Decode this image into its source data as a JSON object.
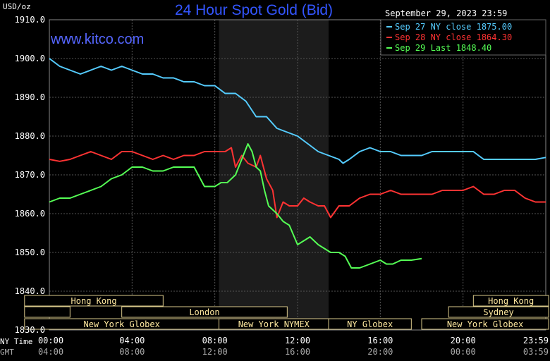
{
  "chart_data": {
    "type": "line",
    "title": "24 Hour Spot Gold (Bid)",
    "website": "www.kitco.com",
    "currency_label": "USD/oz",
    "timestamp": "September 29, 2023 23:59",
    "x_axis_ny_label": "NY Time",
    "x_axis_gmt_label": "GMT",
    "x_ticks_ny": [
      "00:00",
      "04:00",
      "08:00",
      "12:00",
      "16:00",
      "20:00",
      "23:59"
    ],
    "x_ticks_gmt": [
      "04:00",
      "08:00",
      "12:00",
      "16:00",
      "20:00",
      "00:00",
      "03:59"
    ],
    "y_tick_labels": [
      "1910.0",
      "1900.0",
      "1890.0",
      "1880.0",
      "1870.0",
      "1860.0",
      "1850.0",
      "1840.0",
      "1830.0"
    ],
    "ylim": [
      1830,
      1910
    ],
    "xlim_hours": [
      0,
      24
    ],
    "grid": true,
    "legend_position": "top-right",
    "colors": {
      "background": "#000000",
      "grid": "#555555",
      "title": "#3355ff",
      "website": "#5566ff",
      "axis_text": "#ffffff",
      "dim_text": "#aaaaaa",
      "nymex_shade": "#1c1c1c",
      "session_border": "#d8c78a",
      "session_text": "#ffe9a0"
    },
    "sessions": [
      {
        "name": "Hong Kong",
        "row": 0,
        "start": -1.2,
        "end": 5.5
      },
      {
        "name": "Hong Kong",
        "row": 0,
        "start": 20.5,
        "end": 24.2
      },
      {
        "name": "",
        "row": 1,
        "start": -1.2,
        "end": 1.0
      },
      {
        "name": "London",
        "row": 1,
        "start": 3.5,
        "end": 11.5
      },
      {
        "name": "Sydney",
        "row": 1,
        "start": 19.3,
        "end": 24.2
      },
      {
        "name": "New York Globex",
        "row": 2,
        "start": -1.2,
        "end": 8.2
      },
      {
        "name": "New York NYMEX",
        "row": 2,
        "start": 8.2,
        "end": 13.5
      },
      {
        "name": "NY Globex",
        "row": 2,
        "start": 13.5,
        "end": 17.5
      },
      {
        "name": "New York Globex",
        "row": 2,
        "start": 18.0,
        "end": 24.2
      }
    ],
    "shaded_region": {
      "start": 8.2,
      "end": 13.5
    },
    "series": [
      {
        "name": "Sep 27 NY close",
        "close": "1875.00",
        "color": "#55ccff",
        "points": [
          [
            0,
            1900
          ],
          [
            0.5,
            1898
          ],
          [
            1,
            1897
          ],
          [
            1.5,
            1896
          ],
          [
            2,
            1897
          ],
          [
            2.5,
            1898
          ],
          [
            3,
            1897
          ],
          [
            3.5,
            1898
          ],
          [
            4,
            1897
          ],
          [
            4.5,
            1896
          ],
          [
            5,
            1896
          ],
          [
            5.5,
            1895
          ],
          [
            6,
            1895
          ],
          [
            6.5,
            1894
          ],
          [
            7,
            1894
          ],
          [
            7.5,
            1893
          ],
          [
            8,
            1893
          ],
          [
            8.5,
            1891
          ],
          [
            9,
            1891
          ],
          [
            9.5,
            1889
          ],
          [
            10,
            1885
          ],
          [
            10.5,
            1885
          ],
          [
            11,
            1882
          ],
          [
            11.5,
            1881
          ],
          [
            12,
            1880
          ],
          [
            12.5,
            1878
          ],
          [
            13,
            1876
          ],
          [
            13.5,
            1875
          ],
          [
            14,
            1874
          ],
          [
            14.2,
            1873
          ],
          [
            14.5,
            1874
          ],
          [
            15,
            1876
          ],
          [
            15.5,
            1877
          ],
          [
            16,
            1876
          ],
          [
            16.5,
            1876
          ],
          [
            17,
            1875
          ],
          [
            17.5,
            1875
          ],
          [
            18,
            1875
          ],
          [
            18.5,
            1876
          ],
          [
            19,
            1876
          ],
          [
            19.5,
            1876
          ],
          [
            20,
            1876
          ],
          [
            20.5,
            1876
          ],
          [
            21,
            1874
          ],
          [
            21.5,
            1874
          ],
          [
            22,
            1874
          ],
          [
            22.5,
            1874
          ],
          [
            23,
            1874
          ],
          [
            23.5,
            1874
          ],
          [
            24,
            1874.5
          ]
        ]
      },
      {
        "name": "Sep 28 NY close",
        "close": "1864.30",
        "color": "#ff3333",
        "points": [
          [
            0,
            1874
          ],
          [
            0.5,
            1873.5
          ],
          [
            1,
            1874
          ],
          [
            1.5,
            1875
          ],
          [
            2,
            1876
          ],
          [
            2.5,
            1875
          ],
          [
            3,
            1874
          ],
          [
            3.5,
            1876
          ],
          [
            4,
            1876
          ],
          [
            4.5,
            1875
          ],
          [
            5,
            1874
          ],
          [
            5.5,
            1875
          ],
          [
            6,
            1874
          ],
          [
            6.5,
            1875
          ],
          [
            7,
            1875
          ],
          [
            7.5,
            1876
          ],
          [
            8,
            1876
          ],
          [
            8.5,
            1876
          ],
          [
            8.8,
            1877
          ],
          [
            9,
            1872
          ],
          [
            9.3,
            1875
          ],
          [
            9.6,
            1873
          ],
          [
            10,
            1872
          ],
          [
            10.2,
            1875
          ],
          [
            10.5,
            1869
          ],
          [
            10.8,
            1866
          ],
          [
            11,
            1859
          ],
          [
            11.3,
            1863
          ],
          [
            11.6,
            1862
          ],
          [
            12,
            1862
          ],
          [
            12.3,
            1864
          ],
          [
            12.6,
            1863
          ],
          [
            13,
            1862
          ],
          [
            13.3,
            1862
          ],
          [
            13.6,
            1859
          ],
          [
            14,
            1862
          ],
          [
            14.5,
            1862
          ],
          [
            15,
            1864
          ],
          [
            15.5,
            1865
          ],
          [
            16,
            1865
          ],
          [
            16.5,
            1866
          ],
          [
            17,
            1865
          ],
          [
            17.5,
            1865
          ],
          [
            18,
            1865
          ],
          [
            18.5,
            1865
          ],
          [
            19,
            1866
          ],
          [
            19.5,
            1866
          ],
          [
            20,
            1866
          ],
          [
            20.5,
            1867
          ],
          [
            21,
            1865
          ],
          [
            21.5,
            1865
          ],
          [
            22,
            1866
          ],
          [
            22.5,
            1866
          ],
          [
            23,
            1864
          ],
          [
            23.5,
            1863
          ],
          [
            24,
            1863
          ]
        ]
      },
      {
        "name": "Sep 29 Last",
        "close": "1848.40",
        "color": "#55ff55",
        "points": [
          [
            0,
            1863
          ],
          [
            0.5,
            1864
          ],
          [
            1,
            1864
          ],
          [
            1.5,
            1865
          ],
          [
            2,
            1866
          ],
          [
            2.5,
            1867
          ],
          [
            3,
            1869
          ],
          [
            3.5,
            1870
          ],
          [
            4,
            1872
          ],
          [
            4.5,
            1872
          ],
          [
            5,
            1871
          ],
          [
            5.5,
            1871
          ],
          [
            6,
            1872
          ],
          [
            6.5,
            1872
          ],
          [
            7,
            1872
          ],
          [
            7.5,
            1867
          ],
          [
            8,
            1867
          ],
          [
            8.3,
            1868
          ],
          [
            8.6,
            1868
          ],
          [
            9,
            1870
          ],
          [
            9.3,
            1874
          ],
          [
            9.6,
            1878
          ],
          [
            9.8,
            1876
          ],
          [
            10,
            1872
          ],
          [
            10.2,
            1871
          ],
          [
            10.4,
            1866
          ],
          [
            10.6,
            1862
          ],
          [
            11,
            1860
          ],
          [
            11.3,
            1858
          ],
          [
            11.6,
            1857
          ],
          [
            12,
            1852
          ],
          [
            12.3,
            1853
          ],
          [
            12.6,
            1854
          ],
          [
            13,
            1852
          ],
          [
            13.3,
            1851
          ],
          [
            13.6,
            1850
          ],
          [
            14,
            1850
          ],
          [
            14.3,
            1849
          ],
          [
            14.6,
            1846
          ],
          [
            15,
            1846
          ],
          [
            15.5,
            1847
          ],
          [
            16,
            1848
          ],
          [
            16.3,
            1847
          ],
          [
            16.6,
            1847
          ],
          [
            17,
            1848
          ],
          [
            17.5,
            1848
          ],
          [
            18,
            1848.4
          ]
        ]
      }
    ]
  }
}
